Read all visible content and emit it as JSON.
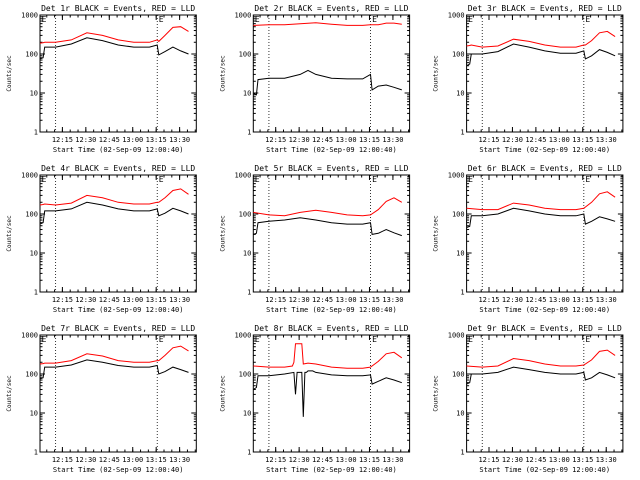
{
  "colors": {
    "events": "#000000",
    "lld": "#ff0000",
    "axes": "#000000",
    "background": "#ffffff"
  },
  "shared": {
    "xlabel": "Start Time (02-Sep-09 12:00:40)",
    "ylabel": "Counts/sec",
    "x_tick_labels": [
      "12:15",
      "12:30",
      "12:45",
      "13:00",
      "13:15",
      "13:30"
    ],
    "x_tick_minutes": [
      14.33,
      29.33,
      44.33,
      59.33,
      74.33,
      89.33
    ],
    "xlim_minutes": [
      0,
      100
    ],
    "y_tick_labels": [
      "1",
      "10",
      "100",
      "1000"
    ],
    "y_tick_values": [
      1,
      10,
      100,
      1000
    ],
    "ylim": [
      1,
      1000
    ],
    "yscale": "log",
    "dotted_vlines_minutes": [
      10,
      75
    ],
    "corner_mark": "E"
  },
  "chart_data": [
    {
      "type": "line",
      "title": "Det 1r BLACK = Events, RED = LLD",
      "xunit": "minutes after 12:00:40",
      "series": [
        {
          "color": "#000000",
          "x": [
            0,
            2,
            3,
            10,
            20,
            30,
            40,
            50,
            60,
            70,
            75,
            76,
            80,
            85,
            90,
            95
          ],
          "values": [
            75,
            80,
            150,
            150,
            180,
            260,
            220,
            170,
            150,
            150,
            170,
            95,
            115,
            150,
            120,
            100
          ]
        },
        {
          "color": "#ff0000",
          "x": [
            0,
            2,
            3,
            10,
            20,
            30,
            40,
            50,
            60,
            70,
            75,
            76,
            80,
            85,
            90,
            95
          ],
          "values": [
            190,
            195,
            200,
            200,
            230,
            350,
            300,
            230,
            200,
            200,
            230,
            210,
            300,
            480,
            500,
            380
          ]
        }
      ]
    },
    {
      "type": "line",
      "title": "Det 2r BLACK = Events, RED = LLD",
      "xunit": "minutes after 12:00:40",
      "series": [
        {
          "color": "#000000",
          "x": [
            0,
            2,
            3,
            10,
            20,
            30,
            35,
            40,
            50,
            60,
            70,
            75,
            76,
            80,
            85,
            90,
            95
          ],
          "values": [
            10,
            9,
            22,
            24,
            24,
            30,
            38,
            30,
            24,
            23,
            23,
            30,
            12,
            15,
            16,
            14,
            12
          ]
        },
        {
          "color": "#ff0000",
          "x": [
            0,
            10,
            20,
            30,
            40,
            50,
            60,
            70,
            75,
            80,
            85,
            90,
            95
          ],
          "values": [
            540,
            560,
            560,
            600,
            630,
            580,
            540,
            540,
            560,
            560,
            620,
            620,
            580
          ]
        }
      ]
    },
    {
      "type": "line",
      "title": "Det 3r BLACK = Events, RED = LLD",
      "xunit": "minutes after 12:00:40",
      "series": [
        {
          "color": "#000000",
          "x": [
            0,
            2,
            3,
            10,
            20,
            30,
            40,
            50,
            60,
            70,
            75,
            76,
            80,
            85,
            90,
            95
          ],
          "values": [
            50,
            55,
            100,
            100,
            115,
            180,
            150,
            120,
            105,
            105,
            120,
            75,
            90,
            130,
            110,
            90
          ]
        },
        {
          "color": "#ff0000",
          "x": [
            0,
            2,
            3,
            10,
            20,
            30,
            40,
            50,
            60,
            70,
            75,
            76,
            80,
            85,
            90,
            95
          ],
          "values": [
            160,
            165,
            170,
            150,
            160,
            240,
            210,
            170,
            150,
            150,
            170,
            170,
            220,
            350,
            380,
            280
          ]
        }
      ]
    },
    {
      "type": "line",
      "title": "Det 4r BLACK = Events, RED = LLD",
      "xunit": "minutes after 12:00:40",
      "series": [
        {
          "color": "#000000",
          "x": [
            0,
            2,
            3,
            10,
            20,
            30,
            40,
            50,
            60,
            70,
            75,
            76,
            80,
            85,
            90,
            95
          ],
          "values": [
            55,
            60,
            120,
            120,
            135,
            200,
            170,
            135,
            120,
            120,
            135,
            90,
            105,
            140,
            120,
            100
          ]
        },
        {
          "color": "#ff0000",
          "x": [
            0,
            2,
            3,
            10,
            20,
            30,
            40,
            50,
            60,
            70,
            75,
            76,
            80,
            85,
            90,
            95
          ],
          "values": [
            170,
            175,
            180,
            170,
            190,
            300,
            260,
            200,
            180,
            180,
            200,
            200,
            260,
            400,
            440,
            320
          ]
        }
      ]
    },
    {
      "type": "line",
      "title": "Det 5r BLACK = Events, RED = LLD",
      "xunit": "minutes after 12:00:40",
      "series": [
        {
          "color": "#000000",
          "x": [
            0,
            2,
            3,
            10,
            20,
            30,
            40,
            50,
            60,
            70,
            75,
            76,
            80,
            85,
            90,
            95
          ],
          "values": [
            30,
            32,
            60,
            65,
            70,
            80,
            70,
            60,
            55,
            55,
            60,
            30,
            32,
            40,
            33,
            28
          ]
        },
        {
          "color": "#ff0000",
          "x": [
            0,
            10,
            20,
            30,
            40,
            50,
            60,
            70,
            75,
            80,
            85,
            90,
            95
          ],
          "values": [
            110,
            95,
            90,
            110,
            125,
            110,
            95,
            90,
            95,
            130,
            210,
            260,
            200
          ]
        }
      ]
    },
    {
      "type": "line",
      "title": "Det 6r BLACK = Events, RED = LLD",
      "xunit": "minutes after 12:00:40",
      "series": [
        {
          "color": "#000000",
          "x": [
            0,
            2,
            3,
            10,
            20,
            30,
            40,
            50,
            60,
            70,
            75,
            76,
            80,
            85,
            90,
            95
          ],
          "values": [
            45,
            48,
            90,
            90,
            100,
            140,
            120,
            100,
            90,
            90,
            100,
            55,
            65,
            85,
            75,
            65
          ]
        },
        {
          "color": "#ff0000",
          "x": [
            0,
            10,
            20,
            30,
            40,
            50,
            60,
            70,
            75,
            80,
            85,
            90,
            95
          ],
          "values": [
            140,
            130,
            130,
            190,
            170,
            140,
            130,
            130,
            140,
            200,
            330,
            370,
            270
          ]
        }
      ]
    },
    {
      "type": "line",
      "title": "Det 7r BLACK = Events, RED = LLD",
      "xunit": "minutes after 12:00:40",
      "series": [
        {
          "color": "#000000",
          "x": [
            0,
            2,
            3,
            10,
            20,
            30,
            40,
            50,
            60,
            70,
            75,
            76,
            80,
            85,
            90,
            95
          ],
          "values": [
            75,
            80,
            150,
            150,
            170,
            230,
            200,
            165,
            150,
            150,
            165,
            100,
            115,
            150,
            130,
            110
          ]
        },
        {
          "color": "#ff0000",
          "x": [
            0,
            2,
            3,
            10,
            20,
            30,
            40,
            50,
            60,
            70,
            75,
            76,
            80,
            85,
            90,
            95
          ],
          "values": [
            180,
            185,
            190,
            190,
            220,
            330,
            290,
            220,
            200,
            200,
            220,
            220,
            300,
            470,
            520,
            390
          ]
        }
      ]
    },
    {
      "type": "line",
      "title": "Det 8r BLACK = Events, RED = LLD",
      "xunit": "minutes after 12:00:40",
      "series": [
        {
          "color": "#000000",
          "x": [
            0,
            2,
            3,
            10,
            20,
            26,
            27,
            28,
            31,
            32,
            33,
            34,
            35,
            38,
            40,
            50,
            60,
            70,
            75,
            76,
            80,
            85,
            90,
            95
          ],
          "values": [
            40,
            45,
            90,
            90,
            100,
            110,
            30,
            110,
            110,
            8,
            110,
            110,
            120,
            120,
            110,
            95,
            90,
            90,
            95,
            55,
            65,
            80,
            70,
            60
          ]
        },
        {
          "color": "#ff0000",
          "x": [
            0,
            10,
            20,
            25,
            26,
            27,
            31,
            32,
            35,
            40,
            50,
            60,
            70,
            75,
            80,
            85,
            90,
            95
          ],
          "values": [
            160,
            150,
            150,
            160,
            200,
            600,
            600,
            180,
            190,
            180,
            150,
            140,
            140,
            150,
            210,
            330,
            360,
            260
          ]
        }
      ]
    },
    {
      "type": "line",
      "title": "Det 9r BLACK = Events, RED = LLD",
      "xunit": "minutes after 12:00:40",
      "series": [
        {
          "color": "#000000",
          "x": [
            0,
            2,
            3,
            10,
            20,
            30,
            40,
            50,
            60,
            70,
            75,
            76,
            80,
            85,
            90,
            95
          ],
          "values": [
            55,
            60,
            100,
            100,
            110,
            150,
            130,
            110,
            100,
            100,
            110,
            70,
            80,
            110,
            95,
            80
          ]
        },
        {
          "color": "#ff0000",
          "x": [
            0,
            10,
            20,
            30,
            40,
            50,
            60,
            70,
            75,
            80,
            85,
            90,
            95
          ],
          "values": [
            160,
            150,
            160,
            250,
            220,
            180,
            160,
            160,
            170,
            230,
            380,
            410,
            300
          ]
        }
      ]
    }
  ]
}
